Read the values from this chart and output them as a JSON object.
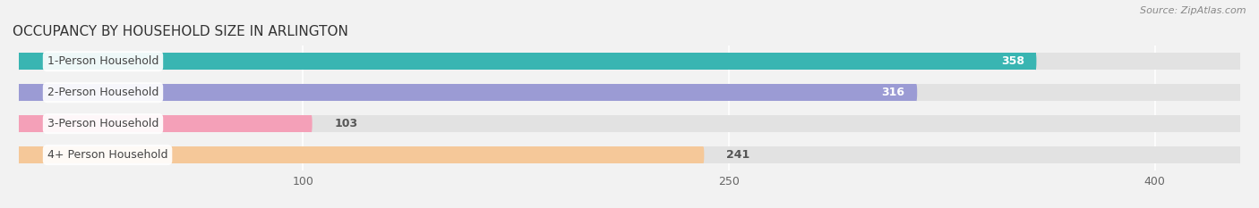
{
  "title": "OCCUPANCY BY HOUSEHOLD SIZE IN ARLINGTON",
  "source": "Source: ZipAtlas.com",
  "categories": [
    "1-Person Household",
    "2-Person Household",
    "3-Person Household",
    "4+ Person Household"
  ],
  "values": [
    358,
    316,
    103,
    241
  ],
  "bar_colors": [
    "#39b5b2",
    "#9b9bd4",
    "#f4a0b8",
    "#f5c899"
  ],
  "label_colors": [
    "white",
    "white",
    "black",
    "black"
  ],
  "xlim": [
    0,
    430
  ],
  "xticks": [
    100,
    250,
    400
  ],
  "background_color": "#f2f2f2",
  "bar_background": "#e2e2e2",
  "title_fontsize": 11,
  "source_fontsize": 8,
  "label_fontsize": 9,
  "value_fontsize": 9
}
